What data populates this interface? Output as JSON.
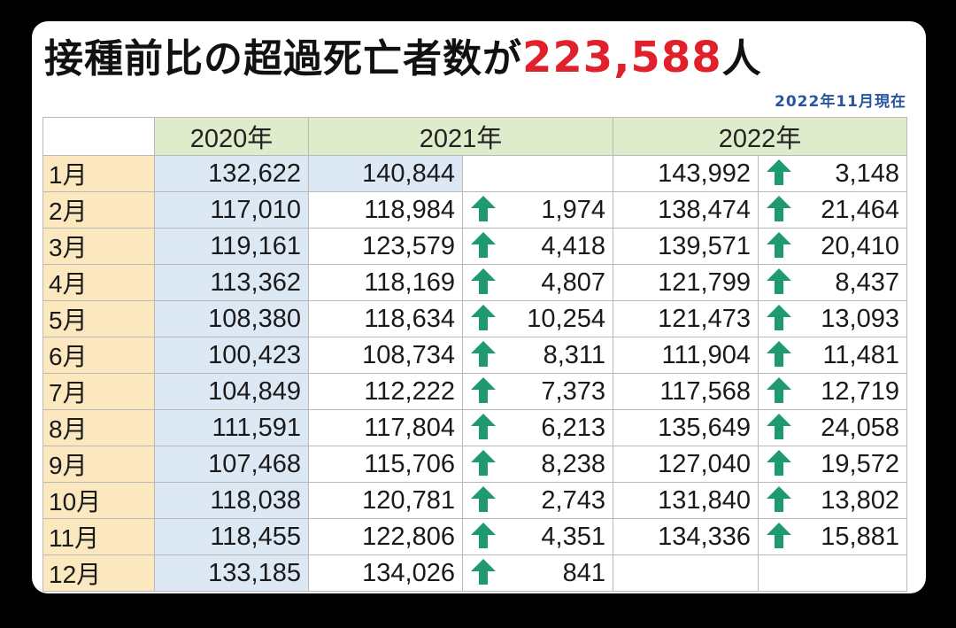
{
  "title": {
    "prefix": "接種前比の超過死亡者数が",
    "highlight": "223,588",
    "suffix": "人"
  },
  "as_of": "2022年11月現在",
  "colors": {
    "highlight": "#e0202a",
    "arrow": "#1f9a6e",
    "header_bg": "#dfeccb",
    "month_bg": "#fbe8bf",
    "col2020_bg": "#dde8f5"
  },
  "arrow_icon": "up-arrow-icon",
  "chart_data": {
    "type": "table",
    "columns": [
      "2020年",
      "2021年",
      "2022年"
    ],
    "rows": [
      {
        "month": "1月",
        "y2020": "132,622",
        "y2021": "140,844",
        "d2021": "",
        "y2022": "143,992",
        "d2022": "3,148"
      },
      {
        "month": "2月",
        "y2020": "117,010",
        "y2021": "118,984",
        "d2021": "1,974",
        "y2022": "138,474",
        "d2022": "21,464"
      },
      {
        "month": "3月",
        "y2020": "119,161",
        "y2021": "123,579",
        "d2021": "4,418",
        "y2022": "139,571",
        "d2022": "20,410"
      },
      {
        "month": "4月",
        "y2020": "113,362",
        "y2021": "118,169",
        "d2021": "4,807",
        "y2022": "121,799",
        "d2022": "8,437"
      },
      {
        "month": "5月",
        "y2020": "108,380",
        "y2021": "118,634",
        "d2021": "10,254",
        "y2022": "121,473",
        "d2022": "13,093"
      },
      {
        "month": "6月",
        "y2020": "100,423",
        "y2021": "108,734",
        "d2021": "8,311",
        "y2022": "111,904",
        "d2022": "11,481"
      },
      {
        "month": "7月",
        "y2020": "104,849",
        "y2021": "112,222",
        "d2021": "7,373",
        "y2022": "117,568",
        "d2022": "12,719"
      },
      {
        "month": "8月",
        "y2020": "111,591",
        "y2021": "117,804",
        "d2021": "6,213",
        "y2022": "135,649",
        "d2022": "24,058"
      },
      {
        "month": "9月",
        "y2020": "107,468",
        "y2021": "115,706",
        "d2021": "8,238",
        "y2022": "127,040",
        "d2022": "19,572"
      },
      {
        "month": "10月",
        "y2020": "118,038",
        "y2021": "120,781",
        "d2021": "2,743",
        "y2022": "131,840",
        "d2022": "13,802"
      },
      {
        "month": "11月",
        "y2020": "118,455",
        "y2021": "122,806",
        "d2021": "4,351",
        "y2022": "134,336",
        "d2022": "15,881"
      },
      {
        "month": "12月",
        "y2020": "133,185",
        "y2021": "134,026",
        "d2021": "841",
        "y2022": "",
        "d2022": ""
      }
    ]
  }
}
